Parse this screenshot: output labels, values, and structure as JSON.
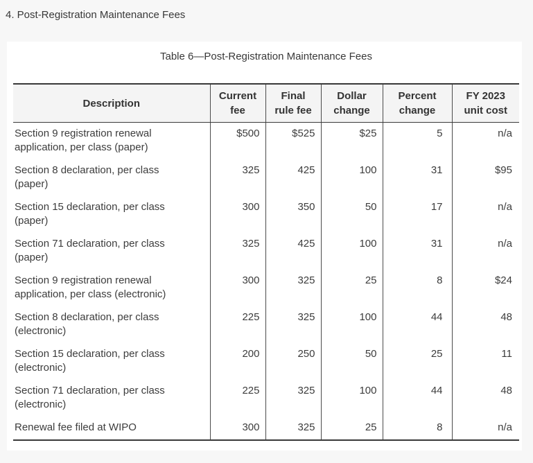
{
  "page": {
    "heading": "4. Post-Registration Maintenance Fees"
  },
  "colors": {
    "page_background": "#f7f7f7",
    "card_background": "#ffffff",
    "header_row_background": "#f4f4f4",
    "table_border": "#383838",
    "column_divider": "#4a4a4a",
    "text": "#3c3c3c"
  },
  "table": {
    "caption": "Table 6—Post-Registration Maintenance Fees",
    "columns": [
      {
        "id": "description",
        "label": "Description"
      },
      {
        "id": "current-fee",
        "label": "Current\nfee"
      },
      {
        "id": "final-rule-fee",
        "label": "Final\nrule fee"
      },
      {
        "id": "dollar-change",
        "label": "Dollar\nchange"
      },
      {
        "id": "percent-change",
        "label": "Percent\nchange"
      },
      {
        "id": "fy-2023-unit-cost",
        "label": "FY 2023\nunit cost"
      }
    ],
    "rows": [
      [
        "Section 9 registration renewal application, per class (paper)",
        "$500",
        "$525",
        "$25",
        "5",
        "n/a"
      ],
      [
        "Section 8 declaration, per class (paper)",
        "325",
        "425",
        "100",
        "31",
        "$95"
      ],
      [
        "Section 15 declaration, per class (paper)",
        "300",
        "350",
        "50",
        "17",
        "n/a"
      ],
      [
        "Section 71 declaration, per class (paper)",
        "325",
        "425",
        "100",
        "31",
        "n/a"
      ],
      [
        "Section 9 registration renewal application, per class (electronic)",
        "300",
        "325",
        "25",
        "8",
        "$24"
      ],
      [
        "Section 8 declaration, per class (electronic)",
        "225",
        "325",
        "100",
        "44",
        "48"
      ],
      [
        "Section 15 declaration, per class (electronic)",
        "200",
        "250",
        "50",
        "25",
        "11"
      ],
      [
        "Section 71 declaration, per class (electronic)",
        "225",
        "325",
        "100",
        "44",
        "48"
      ],
      [
        "Renewal fee filed at WIPO",
        "300",
        "325",
        "25",
        "8",
        "n/a"
      ]
    ]
  }
}
